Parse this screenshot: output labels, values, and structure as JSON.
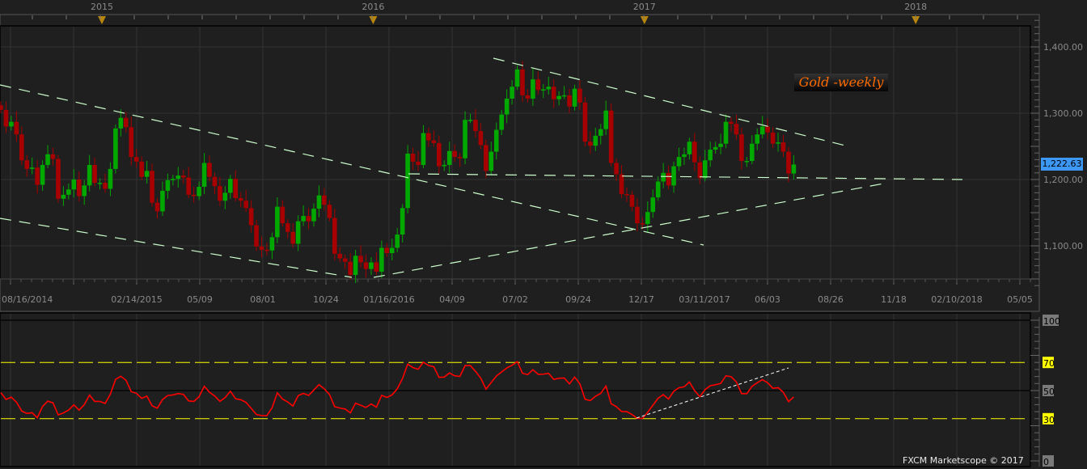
{
  "chart_data": [
    {
      "type": "candlestick",
      "annotation": "Gold -weekly",
      "last_price_label": "1,222.63",
      "ylim": [
        1040,
        1440
      ],
      "y_ticks": [
        "1,400.00",
        "1,300.00",
        "1,200.00",
        "1,100.00"
      ],
      "y_tick_values": [
        1400,
        1300,
        1200,
        1100
      ],
      "year_labels": [
        "2015",
        "2016",
        "2017",
        "2018"
      ],
      "x_tick_labels": [
        "08/16/2014",
        "",
        "02/14/2015",
        "05/09",
        "08/01",
        "10/24",
        "01/16/2016",
        "04/09",
        "07/02",
        "09/24",
        "12/17",
        "03/11/2017",
        "06/03",
        "08/26",
        "11/18",
        "02/10/2018",
        "05/05"
      ],
      "first_open": 1312,
      "weekly_closes": [
        1305,
        1280,
        1287,
        1268,
        1229,
        1216,
        1218,
        1192,
        1222,
        1238,
        1231,
        1171,
        1177,
        1185,
        1200,
        1175,
        1191,
        1222,
        1195,
        1195,
        1186,
        1216,
        1277,
        1293,
        1279,
        1234,
        1227,
        1204,
        1213,
        1165,
        1152,
        1183,
        1199,
        1201,
        1206,
        1203,
        1177,
        1175,
        1189,
        1225,
        1204,
        1190,
        1168,
        1180,
        1201,
        1172,
        1168,
        1157,
        1131,
        1099,
        1094,
        1093,
        1113,
        1159,
        1134,
        1121,
        1103,
        1137,
        1145,
        1137,
        1156,
        1176,
        1162,
        1142,
        1088,
        1081,
        1076,
        1056,
        1085,
        1075,
        1065,
        1075,
        1061,
        1097,
        1089,
        1097,
        1117,
        1157,
        1239,
        1227,
        1222,
        1270,
        1259,
        1255,
        1220,
        1222,
        1243,
        1234,
        1232,
        1290,
        1290,
        1273,
        1252,
        1213,
        1242,
        1275,
        1298,
        1322,
        1340,
        1366,
        1327,
        1322,
        1351,
        1335,
        1336,
        1340,
        1321,
        1326,
        1327,
        1310,
        1337,
        1316,
        1257,
        1251,
        1266,
        1276,
        1304,
        1225,
        1208,
        1178,
        1177,
        1159,
        1134,
        1133,
        1151,
        1173,
        1197,
        1210,
        1191,
        1220,
        1234,
        1238,
        1257,
        1226,
        1202,
        1229,
        1245,
        1249,
        1254,
        1287,
        1284,
        1268,
        1228,
        1228,
        1254,
        1268,
        1280,
        1271,
        1254,
        1256,
        1242,
        1209,
        1222.63
      ],
      "up_color": "#00a800",
      "down_color": "#a80000",
      "trendline_color": "#ccffcc",
      "grid": true
    },
    {
      "type": "line",
      "indicator": "RSI",
      "ylim": [
        0,
        100
      ],
      "y_ticks": [
        "100",
        "70",
        "50",
        "30",
        "0"
      ],
      "y_tick_values": [
        100,
        70,
        50,
        30,
        0
      ],
      "levels": [
        70,
        30
      ],
      "line_color": "#ff0000",
      "level_color": "#ffff00"
    }
  ],
  "footer": {
    "copyright": "FXCM Marketscope © 2017"
  }
}
